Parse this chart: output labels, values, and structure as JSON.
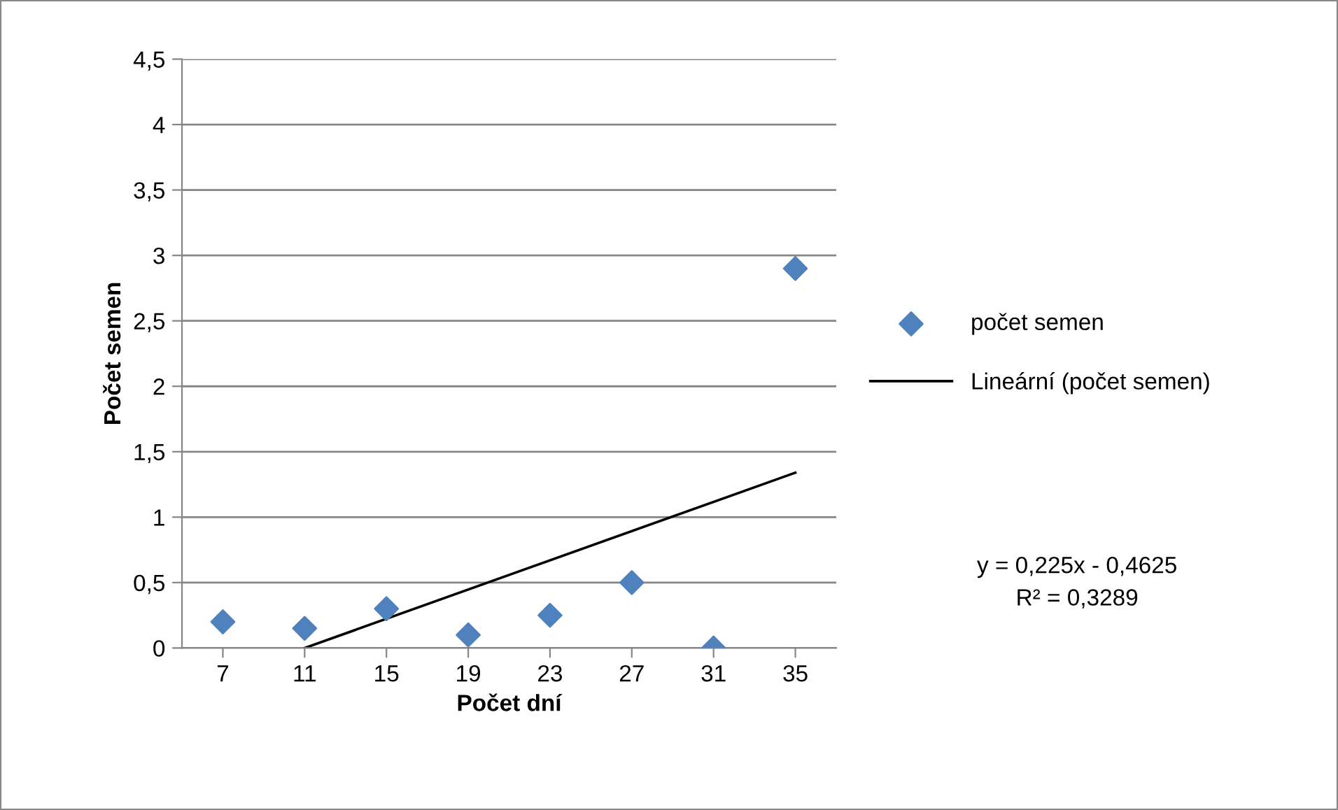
{
  "chart_data": {
    "type": "scatter",
    "xlabel": "Počet dní",
    "ylabel": "Počet semen",
    "categories": [
      "7",
      "11",
      "15",
      "19",
      "23",
      "27",
      "31",
      "35"
    ],
    "series": [
      {
        "name": "počet semen",
        "color": "#4f81bd",
        "marker": "diamond",
        "values": [
          0.2,
          0.15,
          0.3,
          0.1,
          0.25,
          0.5,
          0,
          2.9
        ]
      },
      {
        "name": "Lineární (počet semen)",
        "type": "line",
        "color": "#000000",
        "marker": "none",
        "line_style": "solid",
        "x": [
          "11",
          "35"
        ],
        "values": [
          0,
          1.34
        ]
      }
    ],
    "ylim": [
      0,
      4.5
    ],
    "yticks": [
      0,
      {
        "value": 0.5,
        "label": "0,5"
      },
      1,
      {
        "value": 1.5,
        "label": "1,5"
      },
      2,
      {
        "value": 2.5,
        "label": "2,5"
      },
      3,
      {
        "value": 3.5,
        "label": "3,5"
      },
      4,
      {
        "value": 4.5,
        "label": "4,5"
      }
    ],
    "grid": "y",
    "legend": "right",
    "annotations": [
      "y = 0,225x - 0,4625",
      "R² = 0,3289"
    ]
  }
}
